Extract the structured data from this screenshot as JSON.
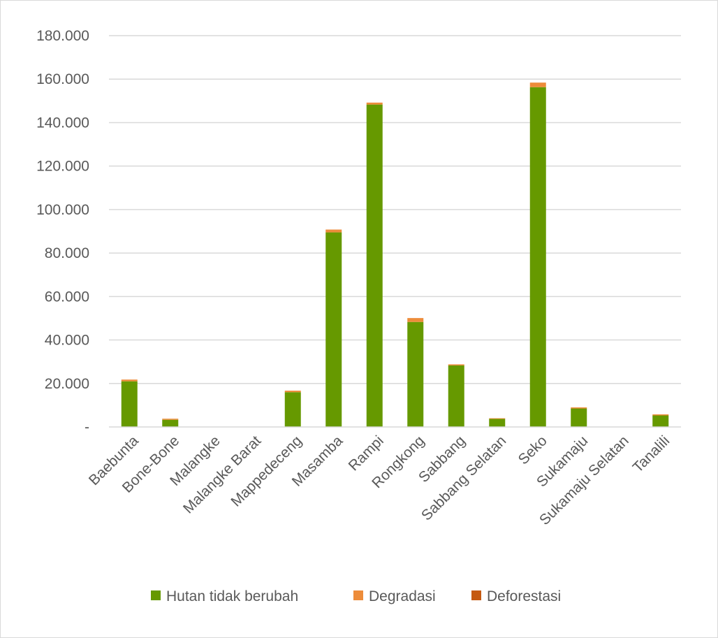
{
  "chart_data": {
    "type": "bar",
    "stacked": true,
    "categories": [
      "Baebunta",
      "Bone-Bone",
      "Malangke",
      "Malangke Barat",
      "Mappedeceng",
      "Masamba",
      "Rampi",
      "Rongkong",
      "Sabbang",
      "Sabbang Selatan",
      "Seko",
      "Sukamaju",
      "Sukamaju Selatan",
      "Tanalili"
    ],
    "series": [
      {
        "name": "Hutan tidak berubah",
        "color": "#669900",
        "values": [
          21000,
          3300,
          0,
          0,
          16000,
          89500,
          148300,
          48300,
          28300,
          3700,
          156300,
          8500,
          0,
          5300
        ]
      },
      {
        "name": "Degradasi",
        "color": "#ed8c3a",
        "values": [
          800,
          500,
          0,
          0,
          700,
          1300,
          900,
          1800,
          500,
          300,
          2100,
          500,
          0,
          500
        ]
      },
      {
        "name": "Deforestasi",
        "color": "#c55a11",
        "values": [
          0,
          0,
          0,
          0,
          0,
          0,
          0,
          0,
          0,
          0,
          0,
          0,
          0,
          0
        ]
      }
    ],
    "ylim": [
      0,
      180000
    ],
    "y_ticks": [
      {
        "value": 0,
        "label": "-"
      },
      {
        "value": 20000,
        "label": "20.000"
      },
      {
        "value": 40000,
        "label": "40.000"
      },
      {
        "value": 60000,
        "label": "60.000"
      },
      {
        "value": 80000,
        "label": "80.000"
      },
      {
        "value": 100000,
        "label": "100.000"
      },
      {
        "value": 120000,
        "label": "120.000"
      },
      {
        "value": 140000,
        "label": "140.000"
      },
      {
        "value": 160000,
        "label": "160.000"
      },
      {
        "value": 180000,
        "label": "180.000"
      }
    ],
    "grid": true,
    "legend_position": "bottom"
  }
}
